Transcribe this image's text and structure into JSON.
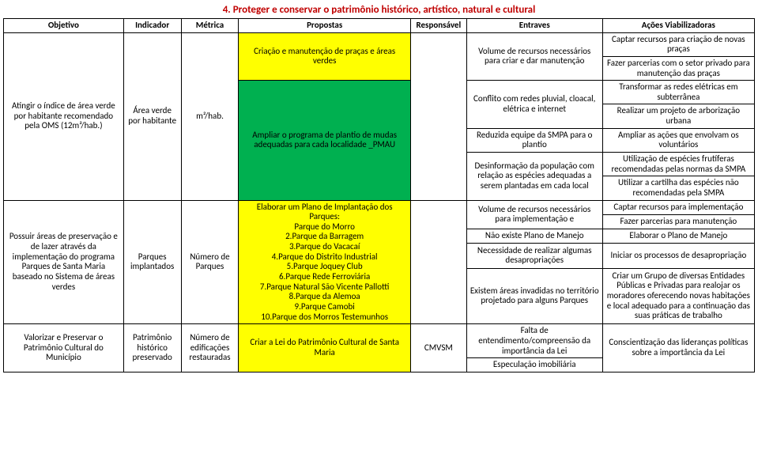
{
  "title": "4. Proteger e conservar o patrimônio histórico, artístico, natural e cultural",
  "headers": {
    "objetivo": "Objetivo",
    "indicador": "Indicador",
    "metrica": "Métrica",
    "propostas": "Propostas",
    "responsavel": "Responsável",
    "entraves": "Entraves",
    "acoes": "Ações Viabilizadoras"
  },
  "obj1": {
    "text": "Atingir o índice de área verde por habitante recomendado pela OMS (12m²/hab.)",
    "ind": "Área verde por habitante",
    "met": "m²/hab.",
    "prop1": "Criação e manutenção de praças e áreas verdes",
    "prop2": "Ampliar o programa de plantio de mudas adequadas para cada localidade _PMAU",
    "entr1": "Volume de recursos necessários para criar e dar manutenção",
    "entr2": "Conflito com redes pluvial, cloacal, elétrica e internet",
    "entr3": "Reduzida equipe da SMPA para o plantio",
    "entr4": "Desinformação da população com relação as espécies adequadas a serem plantadas em cada local",
    "ac1": "Captar recursos para criação de novas praças",
    "ac2": "Fazer parcerias com o setor privado para manutenção das praças",
    "ac3": "Transformar as redes elétricas em subterrânea",
    "ac4": "Realizar um projeto de arborização urbana",
    "ac5": "Ampliar as ações que envolvam os voluntários",
    "ac6": "Utilização de espécies frutíferas recomendadas pelas normas da SMPA",
    "ac7": "Utilizar a cartilha das espécies não recomendadas pela SMPA"
  },
  "obj2": {
    "text": "Possuir áreas de preservação e de lazer através da implementação do programa Parques de Santa Maria baseado no Sistema de áreas verdes",
    "ind": "Parques implantados",
    "met": "Número de Parques",
    "prop_h": "Elaborar um Plano de Implantação dos Parques:",
    "prop_l1": "Parque do Morro",
    "prop_l2": "2.Parque da Barragem",
    "prop_l3": "3.Parque do Vacacaí",
    "prop_l4": "4.Parque do Distrito Industrial",
    "prop_l5": "5.Parque Joquey Club",
    "prop_l6": "6.Parque Rede Ferroviária",
    "prop_l7": "7.Parque Natural São Vicente Pallotti",
    "prop_l8": "8.Parque da Alemoa",
    "prop_l9": "9.Parque Camobi",
    "prop_l10": "10.Parque dos Morros Testemunhos",
    "entr1": "Volume de recursos necessários para implementação e",
    "entr2": "Não existe Plano de Manejo",
    "entr3": "Necessidade de realizar algumas desapropriações",
    "entr4": "Existem áreas invadidas no território projetado para alguns Parques",
    "ac1": "Captar recursos para implementação",
    "ac2": "Fazer parcerias para manutenção",
    "ac3": "Elaborar o Plano de Manejo",
    "ac4": "Iniciar os processos de desapropriação",
    "ac5": "Criar um Grupo de diversas Entidades Públicas e Privadas para realojar os moradores oferecendo novas habitações e local adequado para a continuação das suas práticas de trabalho"
  },
  "obj3": {
    "text": "Valorizar e Preservar o Patrimônio Cultural do Município",
    "ind": "Patrimônio histórico preservado",
    "met": "Número de edificações restauradas",
    "prop": "Criar a Lei do Patrimônio Cultural de Santa Maria",
    "resp": "CMVSM",
    "entr1": "Falta de entendimento/compreensão da importância da Lei",
    "entr2": "Especulação imobiliária",
    "ac1": "Conscientização das lideranças políticas sobre a importância da Lei"
  }
}
